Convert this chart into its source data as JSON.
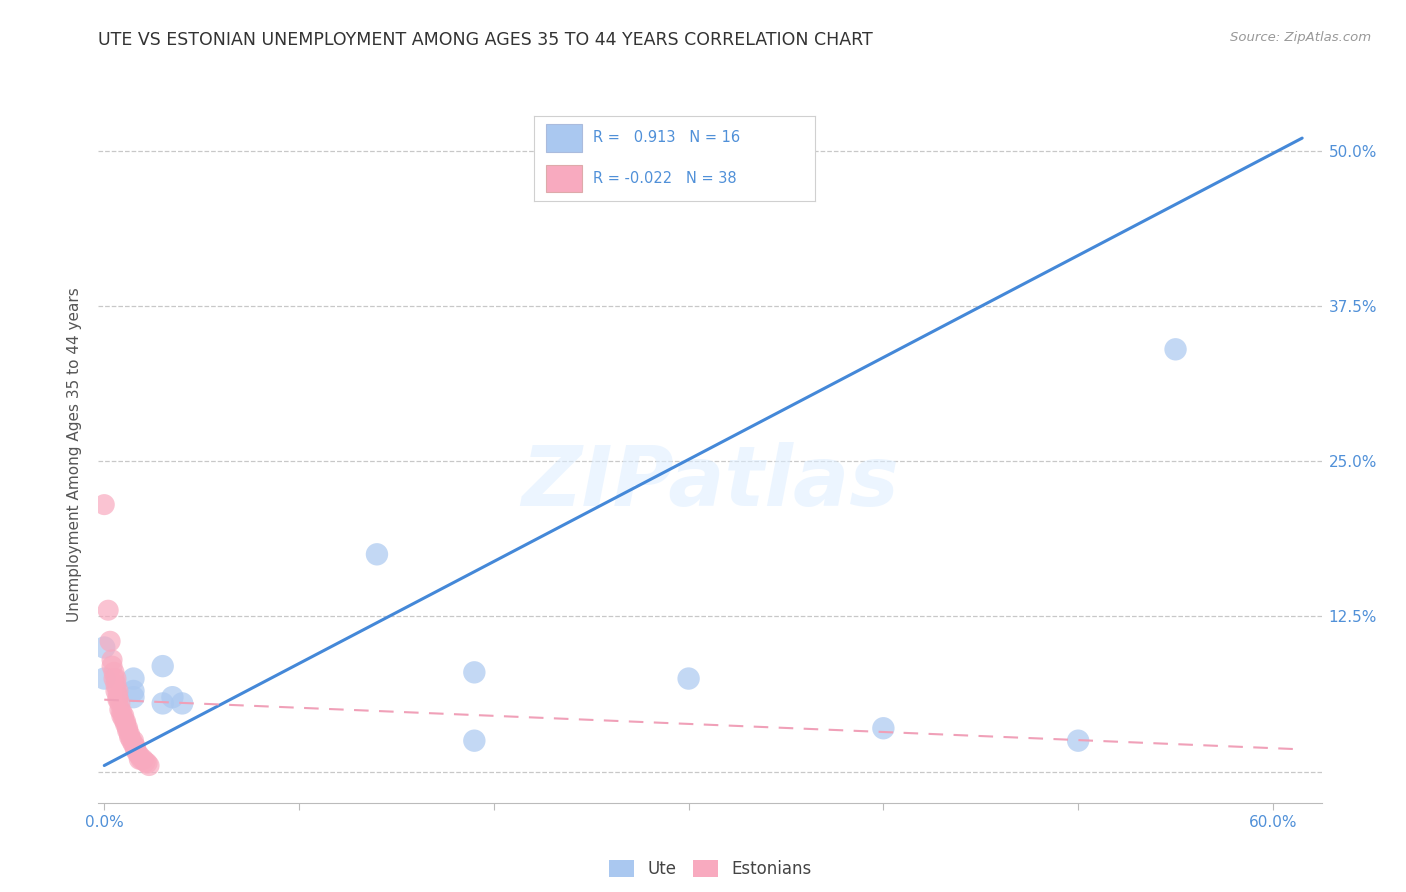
{
  "title": "UTE VS ESTONIAN UNEMPLOYMENT AMONG AGES 35 TO 44 YEARS CORRELATION CHART",
  "source": "Source: ZipAtlas.com",
  "ylabel": "Unemployment Among Ages 35 to 44 years",
  "xlim": [
    -0.003,
    0.625
  ],
  "ylim": [
    -0.025,
    0.535
  ],
  "yticks": [
    0.0,
    0.125,
    0.25,
    0.375,
    0.5
  ],
  "ytick_labels": [
    "",
    "12.5%",
    "25.0%",
    "37.5%",
    "50.0%"
  ],
  "xticks": [
    0.0,
    0.1,
    0.2,
    0.3,
    0.4,
    0.5,
    0.6
  ],
  "xtick_labels": [
    "0.0%",
    "",
    "",
    "",
    "",
    "",
    "60.0%"
  ],
  "background_color": "#ffffff",
  "grid_color": "#c8c8c8",
  "watermark": "ZIPatlas",
  "legend_R_blue": "0.913",
  "legend_N_blue": "16",
  "legend_R_pink": "-0.022",
  "legend_N_pink": "38",
  "blue_color": "#aac8f0",
  "pink_color": "#f8aabf",
  "blue_line_color": "#4488d8",
  "pink_line_color": "#f0a0b8",
  "tick_label_color": "#5090d8",
  "ute_points": [
    [
      0.0,
      0.1
    ],
    [
      0.0,
      0.075
    ],
    [
      0.015,
      0.075
    ],
    [
      0.015,
      0.065
    ],
    [
      0.015,
      0.06
    ],
    [
      0.03,
      0.085
    ],
    [
      0.03,
      0.055
    ],
    [
      0.035,
      0.06
    ],
    [
      0.04,
      0.055
    ],
    [
      0.14,
      0.175
    ],
    [
      0.19,
      0.08
    ],
    [
      0.19,
      0.025
    ],
    [
      0.3,
      0.075
    ],
    [
      0.4,
      0.035
    ],
    [
      0.5,
      0.025
    ],
    [
      0.55,
      0.34
    ]
  ],
  "estonian_points": [
    [
      0.0,
      0.215
    ],
    [
      0.002,
      0.13
    ],
    [
      0.003,
      0.105
    ],
    [
      0.004,
      0.09
    ],
    [
      0.004,
      0.085
    ],
    [
      0.005,
      0.08
    ],
    [
      0.005,
      0.075
    ],
    [
      0.006,
      0.075
    ],
    [
      0.006,
      0.07
    ],
    [
      0.006,
      0.065
    ],
    [
      0.007,
      0.065
    ],
    [
      0.007,
      0.06
    ],
    [
      0.007,
      0.058
    ],
    [
      0.008,
      0.055
    ],
    [
      0.008,
      0.05
    ],
    [
      0.009,
      0.048
    ],
    [
      0.009,
      0.045
    ],
    [
      0.01,
      0.045
    ],
    [
      0.01,
      0.042
    ],
    [
      0.011,
      0.04
    ],
    [
      0.011,
      0.038
    ],
    [
      0.012,
      0.035
    ],
    [
      0.012,
      0.033
    ],
    [
      0.013,
      0.03
    ],
    [
      0.013,
      0.028
    ],
    [
      0.014,
      0.025
    ],
    [
      0.015,
      0.025
    ],
    [
      0.015,
      0.022
    ],
    [
      0.016,
      0.02
    ],
    [
      0.016,
      0.018
    ],
    [
      0.017,
      0.015
    ],
    [
      0.018,
      0.013
    ],
    [
      0.018,
      0.01
    ],
    [
      0.019,
      0.01
    ],
    [
      0.02,
      0.01
    ],
    [
      0.021,
      0.008
    ],
    [
      0.022,
      0.007
    ],
    [
      0.023,
      0.005
    ]
  ],
  "ute_line_x": [
    0.0,
    0.615
  ],
  "ute_line_y": [
    0.005,
    0.51
  ],
  "est_line_x": [
    0.0,
    0.615
  ],
  "est_line_y": [
    0.058,
    0.018
  ]
}
